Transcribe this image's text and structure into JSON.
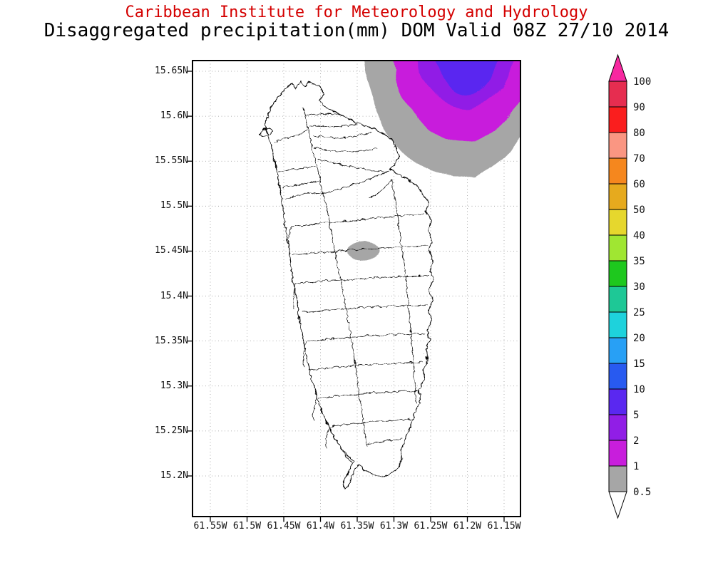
{
  "header": {
    "institute": "Caribbean Institute for Meteorology and Hydrology",
    "subtitle": "Disaggregated precipitation(mm) DOM Valid 08Z 27/10 2014"
  },
  "axes": {
    "lat_ticks": [
      "15.65N",
      "15.6N",
      "15.55N",
      "15.5N",
      "15.45N",
      "15.4N",
      "15.35N",
      "15.3N",
      "15.25N",
      "15.2N"
    ],
    "lon_ticks": [
      "61.55W",
      "61.5W",
      "61.45W",
      "61.4W",
      "61.35W",
      "61.3W",
      "61.25W",
      "61.2W",
      "61.15W"
    ]
  },
  "colorbar": {
    "labels": [
      "100",
      "90",
      "80",
      "70",
      "60",
      "50",
      "40",
      "35",
      "30",
      "25",
      "20",
      "15",
      "10",
      "5",
      "2",
      "1",
      "0.5"
    ],
    "segment_colors_top_to_bottom": [
      "#e62d50",
      "#fa1e1e",
      "#fa9682",
      "#f5871e",
      "#e6aa1e",
      "#e6d72d",
      "#a0e632",
      "#1ec81e",
      "#1ec896",
      "#1ed2dc",
      "#28a0f5",
      "#285af0",
      "#5a28f0",
      "#911ee6",
      "#c81edc",
      "#a6a6a6"
    ],
    "top_arrow_color": "#f728a0",
    "bottom_arrow_color": "#ffffff"
  },
  "colors": {
    "title_red": "#d40000",
    "shade_gray": "#a6a6a6",
    "shade_magenta": "#c81edc",
    "shade_purple": "#911ee6",
    "shade_blueviolet": "#5a28f0"
  },
  "chart_data": {
    "type": "contour-map",
    "title": "Disaggregated precipitation(mm) DOM Valid 08Z 27/10 2014",
    "source_label": "Caribbean Institute for Meteorology and Hydrology",
    "region": "Dominica (DOM)",
    "lat_range": [
      "15.2N",
      "15.65N"
    ],
    "lon_range": [
      "61.55W",
      "61.15W"
    ],
    "units": "mm",
    "contour_levels_mm": [
      0.5,
      1,
      2,
      5,
      10,
      15,
      20,
      25,
      30,
      35,
      40,
      50,
      60,
      70,
      80,
      90,
      100
    ],
    "legend_position": "right vertical colorbar with overflow arrows",
    "grid": "dotted lat/lon grid every 0.05 degrees",
    "features": [
      {
        "name": "northeast-offshore-rain-area",
        "description": "Shaded precipitation maximum extending off the map top, northeast of Dominica; nested bands 0.5, 1, 2 and 5-10 mm (gray, magenta, purple, blue-violet core)",
        "max_band_mm": "5-10"
      },
      {
        "name": "central-island-patch",
        "description": "Small gray 0.5-1 mm patch over west-central Dominica near 15.45N, 61.35W",
        "max_band_mm": "0.5-1"
      }
    ]
  }
}
